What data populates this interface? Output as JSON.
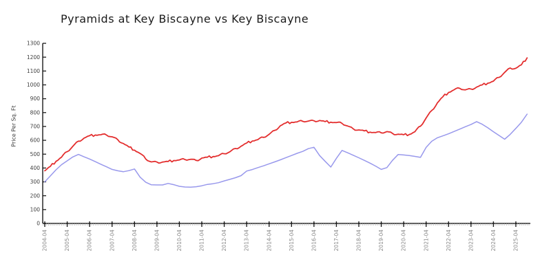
{
  "header": {
    "title": "Pyramids at Key Biscayne vs Key Biscayne"
  },
  "chart_data": {
    "type": "line",
    "title": "Pyramids at Key Biscayne vs Key Biscayne",
    "xlabel": "",
    "ylabel": "Price Per Sq. Ft",
    "ylim": [
      0,
      1300
    ],
    "ytick_step": 100,
    "ytick_labels": [
      "0",
      "100",
      "200",
      "300",
      "400",
      "500",
      "600",
      "700",
      "800",
      "900",
      "1000",
      "1100",
      "1200",
      "1300"
    ],
    "xtick_labels": [
      "2004-04",
      "2005-04",
      "2006-04",
      "2007-04",
      "2008-04",
      "2009-04",
      "2010-04",
      "2011-04",
      "2012-04",
      "2013-04",
      "2014-04",
      "2015-04",
      "2016-04",
      "2017-04",
      "2018-04",
      "2019-04",
      "2020-04",
      "2021-04",
      "2022-04",
      "2023-04",
      "2024-04",
      "2025-04"
    ],
    "grid": false,
    "legend_position": "none",
    "x_start": 2004.25,
    "x_step": 0.25,
    "x_unit": "decimal year, quarterly samples Apr 2004 - Oct 2025",
    "series": [
      {
        "id": "pyramids-at-key-biscayne",
        "name": "Pyramids at Key Biscayne",
        "color": "#e32d2d",
        "values": [
          380,
          412,
          448,
          479,
          518,
          556,
          594,
          616,
          633,
          638,
          640,
          638,
          625,
          605,
          577,
          552,
          529,
          505,
          465,
          444,
          443,
          443,
          447,
          454,
          458,
          461,
          463,
          455,
          472,
          478,
          483,
          489,
          503,
          517,
          541,
          557,
          580,
          595,
          605,
          621,
          643,
          672,
          705,
          725,
          730,
          733,
          737,
          739,
          741,
          743,
          735,
          731,
          728,
          722,
          703,
          683,
          675,
          668,
          659,
          656,
          654,
          663,
          650,
          644,
          640,
          642,
          662,
          702,
          761,
          815,
          870,
          915,
          945,
          965,
          975,
          964,
          970,
          984,
          1000,
          1012,
          1027,
          1054,
          1090,
          1122,
          1120,
          1145,
          1195
        ]
      },
      {
        "id": "key-biscayne",
        "name": "Key Biscayne",
        "color": "#9898ec",
        "values": [
          300,
          343,
          387,
          424,
          452,
          480,
          498,
          481,
          465,
          446,
          427,
          409,
          390,
          380,
          373,
          381,
          393,
          334,
          297,
          279,
          278,
          278,
          289,
          280,
          268,
          263,
          262,
          265,
          272,
          282,
          287,
          294,
          307,
          318,
          330,
          345,
          378,
          389,
          403,
          416,
          430,
          444,
          459,
          475,
          490,
          506,
          520,
          540,
          550,
          490,
          448,
          407,
          470,
          527,
          510,
          492,
          474,
          455,
          435,
          414,
          390,
          403,
          455,
          497,
          494,
          490,
          484,
          477,
          549,
          593,
          618,
          632,
          647,
          664,
          681,
          698,
          714,
          735,
          716,
          690,
          662,
          635,
          608,
          643,
          686,
          731,
          789
        ]
      }
    ]
  }
}
